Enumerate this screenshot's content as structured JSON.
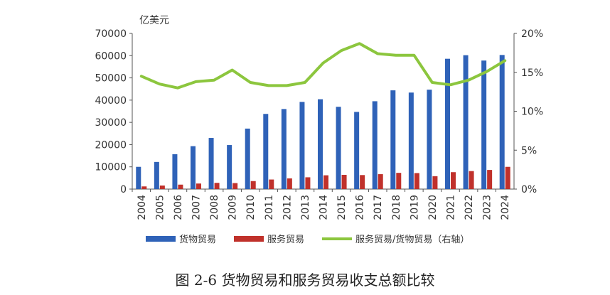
{
  "chart_data": {
    "type": "bar",
    "categories": [
      "2004",
      "2005",
      "2006",
      "2007",
      "2008",
      "2009",
      "2010",
      "2011",
      "2012",
      "2013",
      "2014",
      "2015",
      "2016",
      "2017",
      "2018",
      "2019",
      "2020",
      "2021",
      "2022",
      "2023",
      "2024"
    ],
    "y_unit": "亿美元",
    "ylim": [
      0,
      70000
    ],
    "y_ticks": [
      "0",
      "10000",
      "20000",
      "30000",
      "40000",
      "50000",
      "60000",
      "70000"
    ],
    "y2lim": [
      0,
      20
    ],
    "y2_ticks": [
      "0%",
      "5%",
      "10%",
      "15%",
      "20%"
    ],
    "grid": false,
    "legend_position": "bottom",
    "series": [
      {
        "name": "货物贸易",
        "kind": "bar",
        "axis": "left",
        "color": "#2f62b8",
        "values": [
          10000,
          12200,
          15700,
          19300,
          23000,
          19800,
          27200,
          33800,
          36000,
          39200,
          40400,
          37000,
          34700,
          39500,
          44400,
          43400,
          44700,
          58600,
          60200,
          57800,
          60300
        ]
      },
      {
        "name": "服务贸易",
        "kind": "bar",
        "axis": "left",
        "color": "#c0312b",
        "values": [
          1200,
          1600,
          2000,
          2500,
          2800,
          2700,
          3600,
          4300,
          4800,
          5300,
          6200,
          6400,
          6300,
          6700,
          7300,
          7200,
          5800,
          7600,
          8100,
          8600,
          10000
        ]
      },
      {
        "name": "服务贸易/货物贸易（右轴）",
        "kind": "line",
        "axis": "right",
        "color": "#8cc63e",
        "values": [
          14.5,
          13.5,
          13.0,
          13.8,
          14.0,
          15.3,
          13.7,
          13.3,
          13.3,
          13.7,
          16.2,
          17.8,
          18.7,
          17.4,
          17.2,
          17.2,
          13.7,
          13.4,
          14.0,
          15.1,
          16.5
        ]
      }
    ]
  },
  "caption": "图 2-6    货物贸易和服务贸易收支总额比较"
}
